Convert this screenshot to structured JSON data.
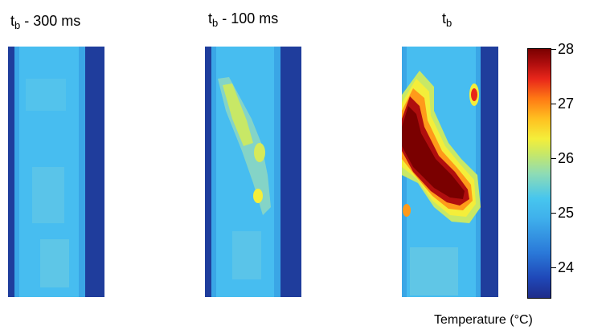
{
  "panels": [
    {
      "id": "p1",
      "label_main": "t",
      "label_sub": "b",
      "label_suffix": " - 300 ms"
    },
    {
      "id": "p2",
      "label_main": "t",
      "label_sub": "b",
      "label_suffix": " - 100 ms"
    },
    {
      "id": "p3",
      "label_main": "t",
      "label_sub": "b",
      "label_suffix": ""
    }
  ],
  "colorbar": {
    "ticks": [
      "28",
      "27",
      "26",
      "25",
      "24"
    ],
    "title": "Temperature (°C)",
    "range": [
      23.5,
      28.1
    ]
  },
  "colors": {
    "edge": "#1f3d9c",
    "base": "#3fb3ec",
    "warm": "#c8e866",
    "yellow": "#f4ee3a",
    "orange": "#ff9a1a",
    "red": "#e8261a",
    "dark_red": "#7a0000"
  }
}
